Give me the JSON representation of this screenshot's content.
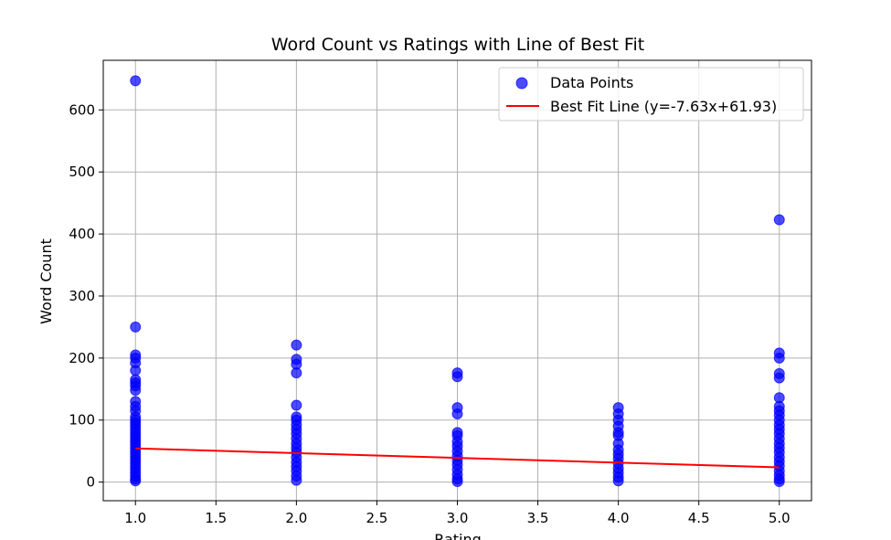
{
  "chart_data": {
    "type": "scatter",
    "title": "Word Count vs Ratings with Line of Best Fit",
    "xlabel": "Rating",
    "ylabel": "Word Count",
    "xlim": [
      0.8,
      5.2
    ],
    "ylim": [
      -30,
      680
    ],
    "xticks": [
      "1.0",
      "1.5",
      "2.0",
      "2.5",
      "3.0",
      "3.5",
      "4.0",
      "4.5",
      "5.0"
    ],
    "yticks": [
      "0",
      "100",
      "200",
      "300",
      "400",
      "500",
      "600"
    ],
    "grid": true,
    "legend_position": "top-right",
    "colors": {
      "points": "#0000ff",
      "line": "#ff0000"
    },
    "series": [
      {
        "name": "Data Points",
        "kind": "scatter",
        "points": [
          [
            1,
            647
          ],
          [
            1,
            250
          ],
          [
            1,
            205
          ],
          [
            1,
            200
          ],
          [
            1,
            192
          ],
          [
            1,
            180
          ],
          [
            1,
            165
          ],
          [
            1,
            160
          ],
          [
            1,
            155
          ],
          [
            1,
            148
          ],
          [
            1,
            130
          ],
          [
            1,
            122
          ],
          [
            1,
            115
          ],
          [
            1,
            105
          ],
          [
            1,
            100
          ],
          [
            1,
            95
          ],
          [
            1,
            90
          ],
          [
            1,
            85
          ],
          [
            1,
            80
          ],
          [
            1,
            75
          ],
          [
            1,
            70
          ],
          [
            1,
            65
          ],
          [
            1,
            60
          ],
          [
            1,
            55
          ],
          [
            1,
            50
          ],
          [
            1,
            45
          ],
          [
            1,
            40
          ],
          [
            1,
            35
          ],
          [
            1,
            30
          ],
          [
            1,
            25
          ],
          [
            1,
            20
          ],
          [
            1,
            15
          ],
          [
            1,
            10
          ],
          [
            1,
            5
          ],
          [
            1,
            2
          ],
          [
            2,
            221
          ],
          [
            2,
            198
          ],
          [
            2,
            190
          ],
          [
            2,
            176
          ],
          [
            2,
            124
          ],
          [
            2,
            105
          ],
          [
            2,
            100
          ],
          [
            2,
            92
          ],
          [
            2,
            85
          ],
          [
            2,
            78
          ],
          [
            2,
            70
          ],
          [
            2,
            62
          ],
          [
            2,
            55
          ],
          [
            2,
            48
          ],
          [
            2,
            40
          ],
          [
            2,
            32
          ],
          [
            2,
            25
          ],
          [
            2,
            18
          ],
          [
            2,
            10
          ],
          [
            2,
            3
          ],
          [
            3,
            176
          ],
          [
            3,
            170
          ],
          [
            3,
            120
          ],
          [
            3,
            110
          ],
          [
            3,
            80
          ],
          [
            3,
            75
          ],
          [
            3,
            65
          ],
          [
            3,
            58
          ],
          [
            3,
            50
          ],
          [
            3,
            42
          ],
          [
            3,
            35
          ],
          [
            3,
            28
          ],
          [
            3,
            20
          ],
          [
            3,
            12
          ],
          [
            3,
            5
          ],
          [
            3,
            1
          ],
          [
            4,
            120
          ],
          [
            4,
            110
          ],
          [
            4,
            100
          ],
          [
            4,
            90
          ],
          [
            4,
            80
          ],
          [
            4,
            75
          ],
          [
            4,
            62
          ],
          [
            4,
            52
          ],
          [
            4,
            45
          ],
          [
            4,
            38
          ],
          [
            4,
            30
          ],
          [
            4,
            22
          ],
          [
            4,
            15
          ],
          [
            4,
            8
          ],
          [
            4,
            2
          ],
          [
            5,
            423
          ],
          [
            5,
            208
          ],
          [
            5,
            200
          ],
          [
            5,
            175
          ],
          [
            5,
            168
          ],
          [
            5,
            136
          ],
          [
            5,
            122
          ],
          [
            5,
            115
          ],
          [
            5,
            108
          ],
          [
            5,
            100
          ],
          [
            5,
            92
          ],
          [
            5,
            85
          ],
          [
            5,
            78
          ],
          [
            5,
            70
          ],
          [
            5,
            62
          ],
          [
            5,
            55
          ],
          [
            5,
            48
          ],
          [
            5,
            40
          ],
          [
            5,
            33
          ],
          [
            5,
            26
          ],
          [
            5,
            18
          ],
          [
            5,
            11
          ],
          [
            5,
            5
          ],
          [
            5,
            1
          ]
        ]
      },
      {
        "name": "Best Fit Line (y=-7.63x+61.93)",
        "kind": "line",
        "points": [
          [
            1,
            54.3
          ],
          [
            5,
            23.78
          ]
        ]
      }
    ]
  }
}
